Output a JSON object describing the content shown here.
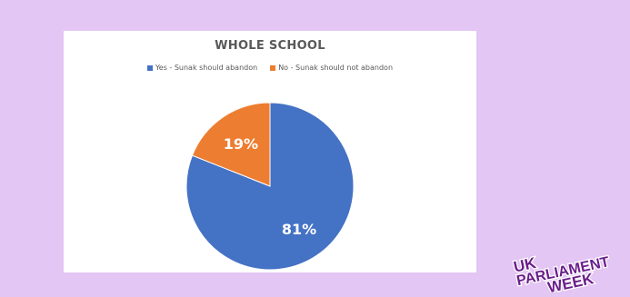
{
  "chart_data": {
    "type": "pie",
    "title": "WHOLE SCHOOL",
    "categories": [
      "Yes - Sunak should abandon",
      "No - Sunak should not abandon"
    ],
    "values": [
      81,
      19
    ],
    "labels": [
      "81%",
      "19%"
    ],
    "colors": [
      "#4472c4",
      "#ed7d31"
    ],
    "legend": "top"
  },
  "logo": {
    "text_lines": [
      "UK",
      "PARLIAMENT",
      "WEEK"
    ],
    "color": "#6a1e8a"
  }
}
